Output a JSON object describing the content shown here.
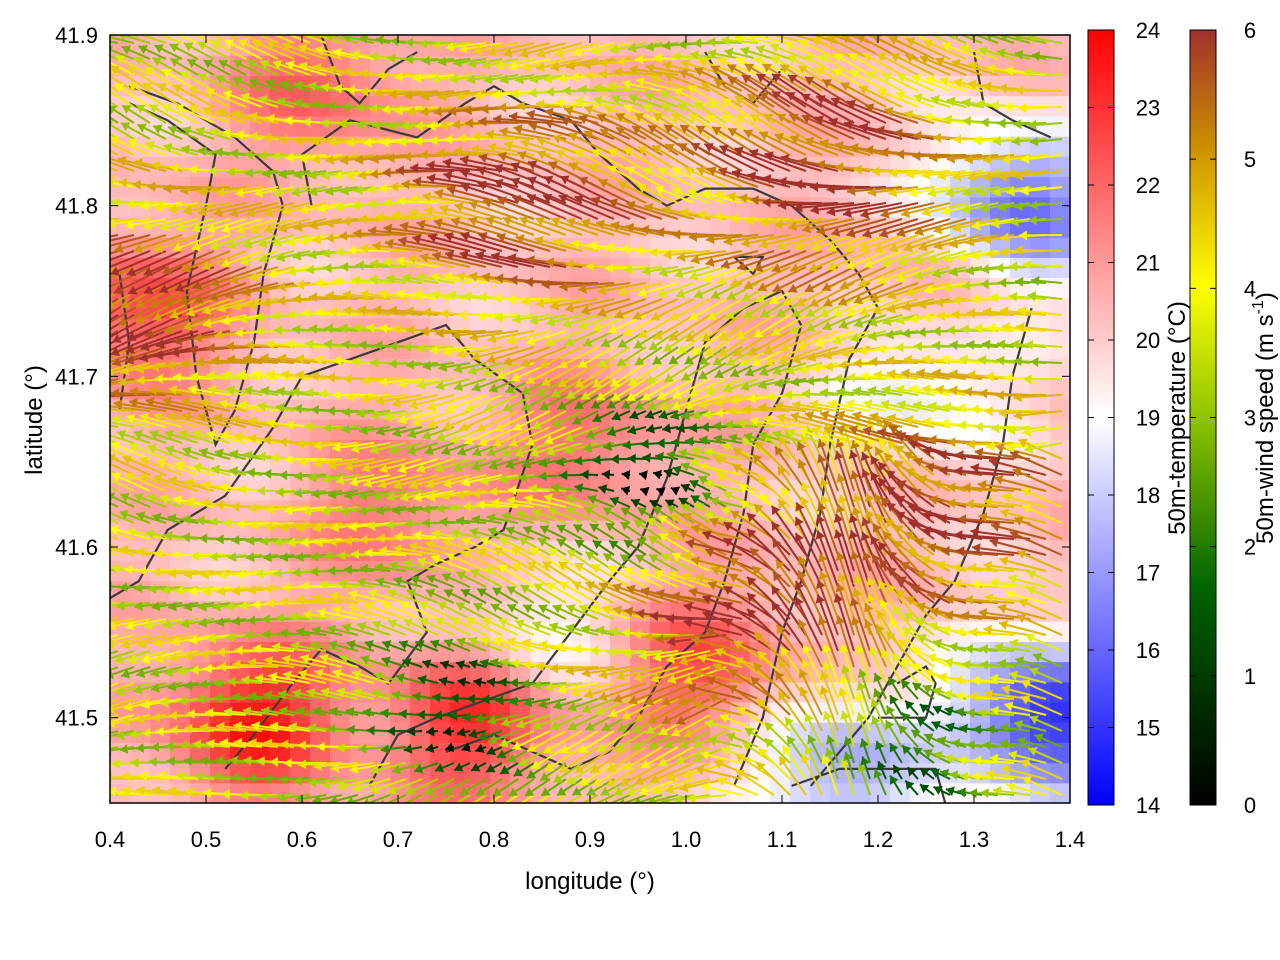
{
  "chart_data": {
    "type": "heatmap",
    "description_kind": "temperature field with wind vectors and contour lines",
    "xlabel": "longitude (°)",
    "ylabel": "latitude (°)",
    "xlim": [
      0.4,
      1.4
    ],
    "ylim": [
      41.45,
      41.9
    ],
    "x_ticks": [
      "0.4",
      "0.5",
      "0.6",
      "0.7",
      "0.8",
      "0.9",
      "1.0",
      "1.1",
      "1.2",
      "1.3",
      "1.4"
    ],
    "y_ticks": [
      "41.5",
      "41.6",
      "41.7",
      "41.8",
      "41.9"
    ],
    "temperature_colorbar": {
      "label": "50m-temperature (°C)",
      "range": [
        14,
        24
      ],
      "ticks": [
        "14",
        "15",
        "16",
        "17",
        "18",
        "19",
        "20",
        "21",
        "22",
        "23",
        "24"
      ],
      "colors": [
        "#0000ff",
        "#ffffff",
        "#ff0000"
      ]
    },
    "wind_colorbar": {
      "label_main": "50m-wind speed (m s",
      "label_sup": "-1",
      "label_close": ")",
      "range": [
        0,
        6
      ],
      "ticks": [
        "0",
        "1",
        "2",
        "3",
        "4",
        "5",
        "6"
      ],
      "colors": [
        "#000000",
        "#006400",
        "#8fc400",
        "#ffff00",
        "#cc8f00",
        "#a0302c"
      ]
    },
    "temperature_field": {
      "background_C": 20.3,
      "hotspots": [
        {
          "lon": 0.43,
          "lat": 41.74,
          "t": 22.6
        },
        {
          "lon": 0.55,
          "lat": 41.5,
          "t": 23.5
        },
        {
          "lon": 0.78,
          "lat": 41.5,
          "t": 23.2
        },
        {
          "lon": 0.7,
          "lat": 41.62,
          "t": 21.8
        },
        {
          "lon": 0.9,
          "lat": 41.66,
          "t": 21.8
        },
        {
          "lon": 1.02,
          "lat": 41.53,
          "t": 22.4
        },
        {
          "lon": 0.62,
          "lat": 41.87,
          "t": 22.0
        },
        {
          "lon": 1.25,
          "lat": 41.74,
          "t": 21.5
        }
      ],
      "coldspots": [
        {
          "lon": 1.38,
          "lat": 41.5,
          "t": 14.6
        },
        {
          "lon": 1.35,
          "lat": 41.8,
          "t": 16.0
        },
        {
          "lon": 1.16,
          "lat": 41.47,
          "t": 17.0
        },
        {
          "lon": 1.25,
          "lat": 41.7,
          "t": 18.0
        },
        {
          "lon": 0.84,
          "lat": 41.55,
          "t": 18.8
        }
      ]
    },
    "wind_field": {
      "components": "u = -speed, v from converging flow",
      "fast_flow_regions": [
        {
          "lon": 0.45,
          "lat": 41.74,
          "speed": 6.0
        },
        {
          "lon": 0.85,
          "lat": 41.8,
          "speed": 6.0
        },
        {
          "lon": 1.17,
          "lat": 41.82,
          "speed": 6.0
        },
        {
          "lon": 1.1,
          "lat": 41.56,
          "speed": 6.0
        },
        {
          "lon": 1.3,
          "lat": 41.62,
          "speed": 5.8
        }
      ],
      "calm_regions": [
        {
          "lon": 0.97,
          "lat": 41.64,
          "speed": 0.4
        },
        {
          "lon": 0.77,
          "lat": 41.5,
          "speed": 0.8
        },
        {
          "lon": 1.25,
          "lat": 41.48,
          "speed": 1.5
        }
      ]
    },
    "contours": [
      [
        [
          0.41,
          41.76
        ],
        [
          0.42,
          41.72
        ],
        [
          0.41,
          41.68
        ]
      ],
      [
        [
          0.42,
          41.87
        ],
        [
          0.47,
          41.86
        ],
        [
          0.53,
          41.84
        ],
        [
          0.57,
          41.82
        ],
        [
          0.58,
          41.8
        ],
        [
          0.56,
          41.76
        ],
        [
          0.55,
          41.72
        ],
        [
          0.53,
          41.68
        ],
        [
          0.51,
          41.66
        ],
        [
          0.49,
          41.7
        ],
        [
          0.48,
          41.75
        ],
        [
          0.5,
          41.8
        ],
        [
          0.51,
          41.83
        ],
        [
          0.46,
          41.85
        ],
        [
          0.42,
          41.86
        ]
      ],
      [
        [
          0.4,
          41.57
        ],
        [
          0.43,
          41.58
        ],
        [
          0.46,
          41.61
        ],
        [
          0.52,
          41.63
        ],
        [
          0.57,
          41.67
        ],
        [
          0.6,
          41.7
        ],
        [
          0.65,
          41.71
        ],
        [
          0.7,
          41.72
        ],
        [
          0.75,
          41.73
        ],
        [
          0.78,
          41.71
        ],
        [
          0.83,
          41.69
        ],
        [
          0.84,
          41.66
        ],
        [
          0.81,
          41.61
        ],
        [
          0.78,
          41.6
        ],
        [
          0.74,
          41.59
        ],
        [
          0.71,
          41.58
        ],
        [
          0.73,
          41.55
        ],
        [
          0.69,
          41.52
        ],
        [
          0.66,
          41.53
        ],
        [
          0.62,
          41.54
        ],
        [
          0.59,
          41.52
        ],
        [
          0.55,
          41.49
        ],
        [
          0.52,
          41.47
        ]
      ],
      [
        [
          0.61,
          41.8
        ],
        [
          0.6,
          41.83
        ],
        [
          0.65,
          41.85
        ],
        [
          0.72,
          41.84
        ],
        [
          0.77,
          41.86
        ],
        [
          0.8,
          41.87
        ],
        [
          0.83,
          41.86
        ],
        [
          0.88,
          41.85
        ],
        [
          0.91,
          41.83
        ],
        [
          0.95,
          41.81
        ],
        [
          0.98,
          41.8
        ],
        [
          1.02,
          41.81
        ],
        [
          1.07,
          41.81
        ],
        [
          1.11,
          41.8
        ],
        [
          1.15,
          41.78
        ],
        [
          1.18,
          41.76
        ],
        [
          1.2,
          41.74
        ],
        [
          1.17,
          41.71
        ],
        [
          1.15,
          41.66
        ],
        [
          1.14,
          41.62
        ],
        [
          1.12,
          41.58
        ],
        [
          1.1,
          41.55
        ],
        [
          1.08,
          41.5
        ],
        [
          1.05,
          41.46
        ]
      ],
      [
        [
          0.67,
          41.46
        ],
        [
          0.7,
          41.49
        ],
        [
          0.74,
          41.5
        ],
        [
          0.79,
          41.51
        ],
        [
          0.84,
          41.52
        ],
        [
          0.88,
          41.55
        ],
        [
          0.92,
          41.58
        ],
        [
          0.95,
          41.6
        ],
        [
          0.98,
          41.64
        ],
        [
          1.0,
          41.68
        ],
        [
          1.02,
          41.72
        ],
        [
          1.06,
          41.74
        ],
        [
          1.1,
          41.75
        ],
        [
          1.12,
          41.73
        ],
        [
          1.1,
          41.69
        ],
        [
          1.07,
          41.66
        ],
        [
          1.06,
          41.62
        ],
        [
          1.04,
          41.58
        ],
        [
          1.02,
          41.55
        ],
        [
          0.98,
          41.53
        ],
        [
          0.95,
          41.5
        ],
        [
          0.92,
          41.48
        ],
        [
          0.88,
          41.47
        ],
        [
          0.84,
          41.48
        ],
        [
          0.8,
          41.49
        ],
        [
          0.75,
          41.48
        ]
      ],
      [
        [
          1.05,
          41.77
        ],
        [
          1.08,
          41.77
        ],
        [
          1.07,
          41.76
        ],
        [
          1.05,
          41.77
        ]
      ],
      [
        [
          1.2,
          41.5
        ],
        [
          1.25,
          41.5
        ],
        [
          1.26,
          41.52
        ],
        [
          1.25,
          41.53
        ],
        [
          1.22,
          41.52
        ]
      ],
      [
        [
          1.11,
          41.46
        ],
        [
          1.16,
          41.47
        ],
        [
          1.22,
          41.47
        ],
        [
          1.26,
          41.47
        ],
        [
          1.27,
          41.45
        ]
      ],
      [
        [
          1.36,
          41.74
        ],
        [
          1.34,
          41.7
        ],
        [
          1.33,
          41.66
        ],
        [
          1.31,
          41.62
        ],
        [
          1.28,
          41.58
        ],
        [
          1.25,
          41.56
        ],
        [
          1.22,
          41.53
        ],
        [
          1.19,
          41.5
        ],
        [
          1.16,
          41.48
        ],
        [
          1.13,
          41.46
        ]
      ],
      [
        [
          1.3,
          41.89
        ],
        [
          1.31,
          41.86
        ],
        [
          1.34,
          41.85
        ],
        [
          1.38,
          41.84
        ]
      ],
      [
        [
          0.62,
          41.9
        ],
        [
          0.64,
          41.87
        ],
        [
          0.66,
          41.86
        ],
        [
          0.69,
          41.88
        ],
        [
          0.72,
          41.89
        ]
      ],
      [
        [
          1.02,
          41.89
        ],
        [
          1.04,
          41.87
        ],
        [
          1.07,
          41.86
        ],
        [
          1.1,
          41.88
        ]
      ]
    ]
  }
}
